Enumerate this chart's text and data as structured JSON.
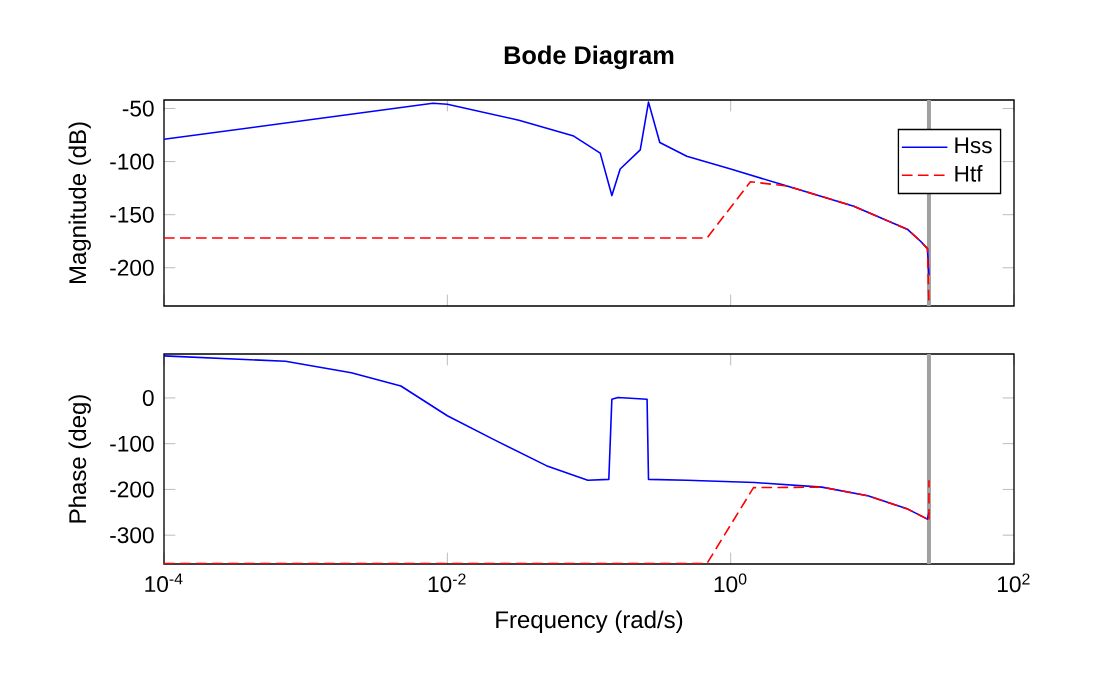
{
  "chart_data": [
    {
      "type": "line",
      "title": "Bode Diagram",
      "ylabel": "Magnitude (dB)",
      "log": "x",
      "xlim": [
        0.0001,
        100
      ],
      "ylim": [
        -236,
        -42
      ],
      "xticks": [
        {
          "value": 0.0001,
          "label": null
        },
        {
          "value": 0.01,
          "label": null
        },
        {
          "value": 1,
          "label": null
        },
        {
          "value": 100,
          "label": null
        }
      ],
      "yticks": [
        -200,
        -150,
        -100,
        -50
      ],
      "tick_labels": "y",
      "grid": false,
      "legend": "top right",
      "marker": "none",
      "series": [
        {
          "name": "Hss",
          "color": "#0000ff",
          "line_style": "solid",
          "x": [
            0.0001,
            0.0079,
            0.01,
            0.032,
            0.078,
            0.12,
            0.145,
            0.166,
            0.23,
            0.263,
            0.316,
            0.49,
            1,
            2.5,
            7.4,
            17.8,
            21.9,
            24.5,
            25.1
          ],
          "values": [
            -79,
            -45,
            -46,
            -61,
            -76,
            -92,
            -132,
            -107,
            -89,
            -44,
            -82,
            -95,
            -107,
            -123,
            -142,
            -164,
            -175,
            -182,
            -207
          ]
        },
        {
          "name": "Htf",
          "color": "#ff0000",
          "line_style": "dashed",
          "x": [
            0.0001,
            0.68,
            1.38,
            2.5,
            7.4,
            17.8,
            21.9,
            24.5,
            25.1
          ],
          "values": [
            -172,
            -172,
            -119,
            -123,
            -142,
            -164,
            -175,
            -182,
            -235
          ]
        }
      ],
      "ref_lines": [
        {
          "axis": "x",
          "value": 25.1,
          "color": "#a0a0a0"
        }
      ]
    },
    {
      "type": "line",
      "ylabel": "Phase (deg)",
      "xlabel": "Frequency (rad/s)",
      "log": "x",
      "xlim": [
        0.0001,
        100
      ],
      "ylim": [
        -363,
        96
      ],
      "xticks": [
        {
          "value": 0.0001,
          "label": "10$^{-4}$"
        },
        {
          "value": 0.01,
          "label": "10$^{-2}$"
        },
        {
          "value": 1,
          "label": "10$^{0}$"
        },
        {
          "value": 100,
          "label": "10$^{2}$"
        }
      ],
      "yticks": [
        -300,
        -200,
        -100,
        0
      ],
      "grid": false,
      "marker": "none",
      "series": [
        {
          "color": "#0000ff",
          "line_style": "solid",
          "x": [
            0.0001,
            0.00072,
            0.0021,
            0.0047,
            0.01,
            0.021,
            0.05,
            0.098,
            0.138,
            0.145,
            0.16,
            0.257,
            0.263,
            0.49,
            1.48,
            4.4,
            9.3,
            17.8,
            24.5,
            25.1
          ],
          "values": [
            92,
            80,
            55,
            26,
            -39,
            -90,
            -148,
            -180,
            -178,
            -3,
            1,
            -3,
            -178,
            -180,
            -185,
            -195,
            -214,
            -243,
            -265,
            -250
          ]
        },
        {
          "color": "#ff0000",
          "line_style": "dashed",
          "x": [
            0.0001,
            0.68,
            1.45,
            4.4,
            9.3,
            17.8,
            24.5,
            25.1,
            25.1
          ],
          "values": [
            -362,
            -362,
            -196,
            -195,
            -214,
            -243,
            -265,
            -270,
            -180
          ]
        }
      ],
      "ref_lines": [
        {
          "axis": "x",
          "value": 25.1,
          "color": "#a0a0a0"
        }
      ]
    }
  ]
}
